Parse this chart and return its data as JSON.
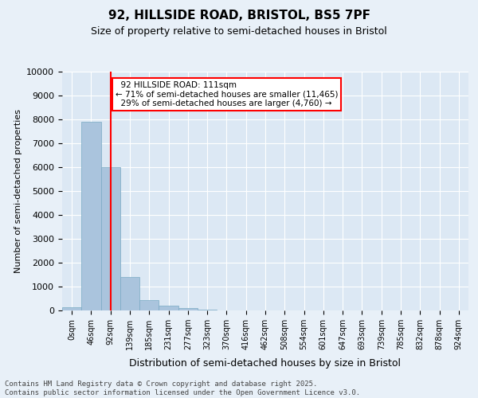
{
  "title_line1": "92, HILLSIDE ROAD, BRISTOL, BS5 7PF",
  "title_line2": "Size of property relative to semi-detached houses in Bristol",
  "xlabel": "Distribution of semi-detached houses by size in Bristol",
  "ylabel": "Number of semi-detached properties",
  "bin_labels": [
    "0sqm",
    "46sqm",
    "92sqm",
    "139sqm",
    "185sqm",
    "231sqm",
    "277sqm",
    "323sqm",
    "370sqm",
    "416sqm",
    "462sqm",
    "508sqm",
    "554sqm",
    "601sqm",
    "647sqm",
    "693sqm",
    "739sqm",
    "785sqm",
    "832sqm",
    "878sqm",
    "924sqm"
  ],
  "bar_values": [
    130,
    7900,
    6000,
    1400,
    450,
    200,
    100,
    50,
    0,
    0,
    0,
    0,
    0,
    0,
    0,
    0,
    0,
    0,
    0,
    0,
    0
  ],
  "bar_color": "#aac4dd",
  "bar_edge_color": "#7aaac4",
  "property_bin_index": 2,
  "red_line_label": "92 HILLSIDE ROAD: 111sqm",
  "pct_smaller": 71,
  "pct_smaller_count": 11465,
  "pct_larger": 29,
  "pct_larger_count": 4760,
  "ylim": [
    0,
    10000
  ],
  "yticks": [
    0,
    1000,
    2000,
    3000,
    4000,
    5000,
    6000,
    7000,
    8000,
    9000,
    10000
  ],
  "background_color": "#e8f0f8",
  "plot_bg_color": "#dce8f4",
  "footer_text": "Contains HM Land Registry data © Crown copyright and database right 2025.\nContains public sector information licensed under the Open Government Licence v3.0.",
  "grid_color": "#ffffff"
}
